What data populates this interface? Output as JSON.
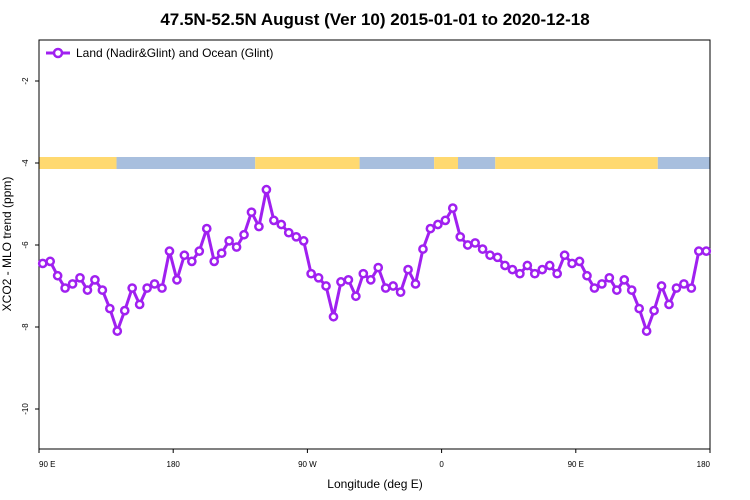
{
  "chart_data": {
    "type": "line",
    "title": "47.5N-52.5N August (Ver 10)   2015-01-01 to 2020-12-18",
    "xlabel": "Longitude (deg E)",
    "ylabel": "XCO2 - MLO trend (ppm)",
    "x_ticks": [
      {
        "value": 90,
        "label": "90 E"
      },
      {
        "value": 180,
        "label": "180"
      },
      {
        "value": 270,
        "label": "90 W"
      },
      {
        "value": 360,
        "label": "0"
      },
      {
        "value": 450,
        "label": "90 E"
      },
      {
        "value": 540,
        "label": "180"
      }
    ],
    "y_ticks": [
      -2,
      -4,
      -6,
      -8,
      -10
    ],
    "xlim": [
      90,
      540
    ],
    "ylim": [
      -12,
      -1
    ],
    "grid": false,
    "legend_position": "top-left",
    "colors": {
      "series": "#a020f0",
      "land": "#ffd970",
      "ocean": "#a8bfde"
    },
    "surface_bar": {
      "y": -4,
      "segments": [
        {
          "type": "land",
          "from": 90,
          "to": 142
        },
        {
          "type": "ocean",
          "from": 142,
          "to": 235
        },
        {
          "type": "land",
          "from": 235,
          "to": 305
        },
        {
          "type": "ocean",
          "from": 305,
          "to": 355
        },
        {
          "type": "land",
          "from": 355,
          "to": 371
        },
        {
          "type": "ocean",
          "from": 371,
          "to": 396
        },
        {
          "type": "land",
          "from": 396,
          "to": 505
        },
        {
          "type": "ocean",
          "from": 505,
          "to": 540
        }
      ]
    },
    "series": [
      {
        "name": "Land (Nadir&Glint) and Ocean (Glint)",
        "x": [
          92.5,
          97.5,
          102.5,
          107.5,
          112.5,
          117.5,
          122.5,
          127.5,
          132.5,
          137.5,
          142.5,
          147.5,
          152.5,
          157.5,
          162.5,
          167.5,
          172.5,
          177.5,
          182.5,
          187.5,
          192.5,
          197.5,
          202.5,
          207.5,
          212.5,
          217.5,
          222.5,
          227.5,
          232.5,
          237.5,
          242.5,
          247.5,
          252.5,
          257.5,
          262.5,
          267.5,
          272.5,
          277.5,
          282.5,
          287.5,
          292.5,
          297.5,
          302.5,
          307.5,
          312.5,
          317.5,
          322.5,
          327.5,
          332.5,
          337.5,
          342.5,
          347.5,
          352.5,
          357.5,
          362.5,
          367.5,
          372.5,
          377.5,
          382.5,
          387.5,
          392.5,
          397.5,
          402.5,
          407.5,
          412.5,
          417.5,
          422.5,
          427.5,
          432.5,
          437.5,
          442.5,
          447.5,
          452.5,
          457.5,
          462.5,
          467.5,
          472.5,
          477.5,
          482.5,
          487.5,
          492.5,
          497.5,
          502.5,
          507.5,
          512.5,
          517.5,
          522.5,
          527.5,
          532.5,
          537.5
        ],
        "values": [
          -6.45,
          -6.4,
          -6.75,
          -7.05,
          -6.95,
          -6.8,
          -7.1,
          -6.85,
          -7.1,
          -7.55,
          -8.1,
          -7.6,
          -7.05,
          -7.45,
          -7.05,
          -6.95,
          -7.05,
          -6.15,
          -6.85,
          -6.25,
          -6.4,
          -6.15,
          -5.6,
          -6.4,
          -6.2,
          -5.9,
          -6.05,
          -5.75,
          -5.2,
          -5.55,
          -4.65,
          -5.4,
          -5.5,
          -5.7,
          -5.8,
          -5.9,
          -6.7,
          -6.8,
          -7.0,
          -7.75,
          -6.9,
          -6.85,
          -7.25,
          -6.7,
          -6.85,
          -6.55,
          -7.05,
          -7.0,
          -7.15,
          -6.6,
          -6.95,
          -6.1,
          -5.6,
          -5.5,
          -5.4,
          -5.1,
          -5.8,
          -6.0,
          -5.95,
          -6.1,
          -6.25,
          -6.3,
          -6.5,
          -6.6,
          -6.7,
          -6.5,
          -6.7,
          -6.6,
          -6.5,
          -6.7,
          -6.25,
          -6.45,
          -6.4,
          -6.75,
          -7.05,
          -6.95,
          -6.8,
          -7.1,
          -6.85,
          -7.1,
          -7.55,
          -8.1,
          -7.6,
          -7.0,
          -7.45,
          -7.05,
          -6.95,
          -7.05,
          -6.15,
          -6.15
        ]
      }
    ]
  }
}
